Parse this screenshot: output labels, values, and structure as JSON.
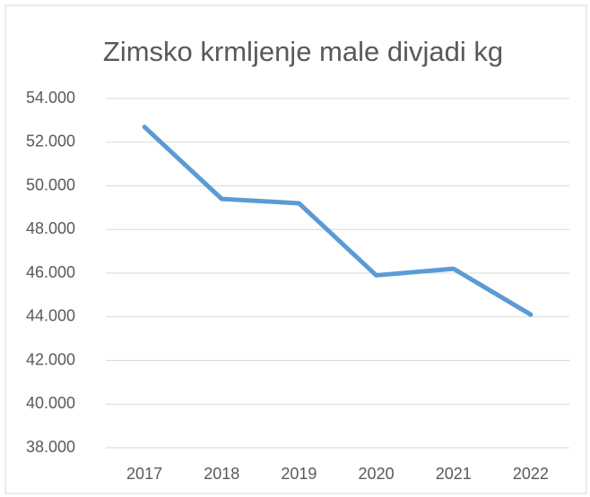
{
  "chart_data": {
    "type": "line",
    "title": "Zimsko krmljenje male divjadi kg",
    "categories": [
      "2017",
      "2018",
      "2019",
      "2020",
      "2021",
      "2022"
    ],
    "series": [
      {
        "name": "Zimsko krmljenje male divjadi kg",
        "color": "#5b9bd5",
        "values": [
          52700,
          49400,
          49200,
          45900,
          46200,
          44100
        ]
      }
    ],
    "ylim": [
      38000,
      54000
    ],
    "yticks": [
      {
        "value": 38000,
        "label": "38.000"
      },
      {
        "value": 40000,
        "label": "40.000"
      },
      {
        "value": 42000,
        "label": "42.000"
      },
      {
        "value": 44000,
        "label": "44.000"
      },
      {
        "value": 46000,
        "label": "46.000"
      },
      {
        "value": 48000,
        "label": "48.000"
      },
      {
        "value": 50000,
        "label": "50.000"
      },
      {
        "value": 52000,
        "label": "52.000"
      },
      {
        "value": 54000,
        "label": "54.000"
      }
    ],
    "grid": true
  }
}
